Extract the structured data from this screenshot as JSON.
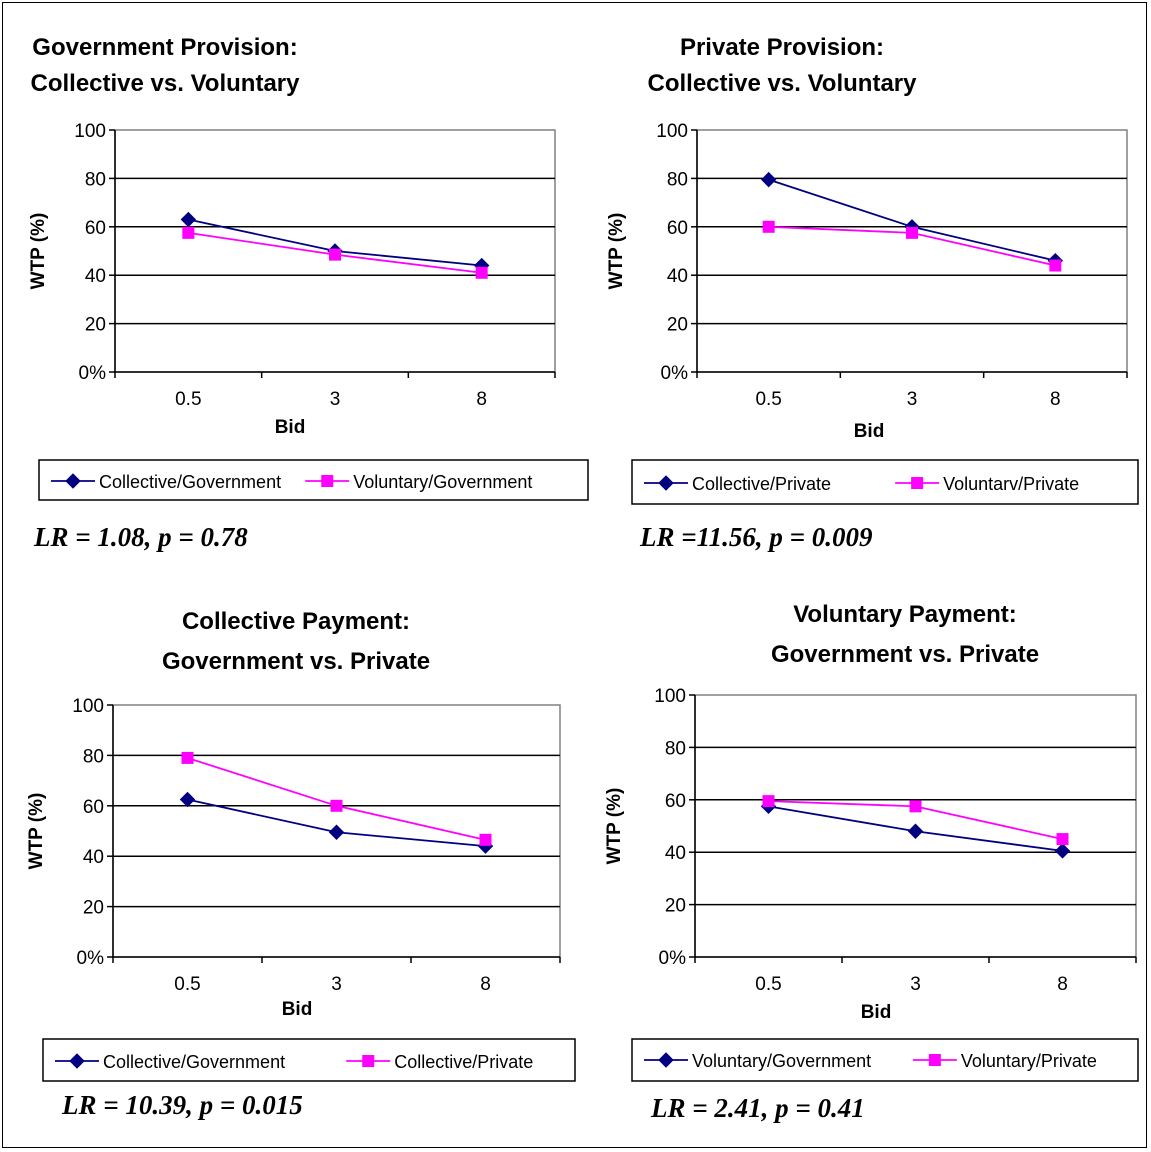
{
  "chart_data": [
    {
      "type": "line",
      "title": [
        "Government Provision:",
        "Collective vs. Voluntary"
      ],
      "xlabel": "Bid",
      "ylabel": "WTP (%)",
      "categories": [
        "0.5",
        "3",
        "8"
      ],
      "yticks": [
        "0%",
        "20",
        "40",
        "60",
        "80",
        "100"
      ],
      "ylim": [
        0,
        100
      ],
      "grid": true,
      "legend_position": "bottom",
      "series": [
        {
          "name": "Collective/Government",
          "values": [
            63,
            50,
            44
          ],
          "color": "#000080",
          "marker": "diamond"
        },
        {
          "name": "Voluntary/Government",
          "values": [
            57.5,
            48.5,
            41
          ],
          "color": "#ff00ff",
          "marker": "square"
        }
      ],
      "annotation": "LR = 1.08, p = 0.78"
    },
    {
      "type": "line",
      "title": [
        "Private Provision:",
        "Collective vs. Voluntary"
      ],
      "xlabel": "Bid",
      "ylabel": "WTP (%)",
      "categories": [
        "0.5",
        "3",
        "8"
      ],
      "yticks": [
        "0%",
        "20",
        "40",
        "60",
        "80",
        "100"
      ],
      "ylim": [
        0,
        100
      ],
      "grid": true,
      "legend_position": "bottom",
      "series": [
        {
          "name": "Collective/Private",
          "values": [
            79.5,
            60,
            46
          ],
          "color": "#000080",
          "marker": "diamond"
        },
        {
          "name": "Voluntarv/Private",
          "values": [
            60,
            57.5,
            44
          ],
          "color": "#ff00ff",
          "marker": "square"
        }
      ],
      "annotation": "LR =11.56, p = 0.009"
    },
    {
      "type": "line",
      "title": [
        "Collective Payment:",
        "Government vs. Private"
      ],
      "xlabel": "Bid",
      "ylabel": "WTP (%)",
      "categories": [
        "0.5",
        "3",
        "8"
      ],
      "yticks": [
        "0%",
        "20",
        "40",
        "60",
        "80",
        "100"
      ],
      "ylim": [
        0,
        100
      ],
      "grid": true,
      "legend_position": "bottom",
      "series": [
        {
          "name": "Collective/Government",
          "values": [
            62.5,
            49.5,
            44
          ],
          "color": "#000080",
          "marker": "diamond"
        },
        {
          "name": "Collective/Private",
          "values": [
            79,
            60,
            46.5
          ],
          "color": "#ff00ff",
          "marker": "square"
        }
      ],
      "annotation": "LR = 10.39, p = 0.015"
    },
    {
      "type": "line",
      "title": [
        "Voluntary Payment:",
        "Government vs. Private"
      ],
      "xlabel": "Bid",
      "ylabel": "WTP (%)",
      "categories": [
        "0.5",
        "3",
        "8"
      ],
      "yticks": [
        "0%",
        "20",
        "40",
        "60",
        "80",
        "100"
      ],
      "ylim": [
        0,
        100
      ],
      "grid": true,
      "legend_position": "bottom",
      "series": [
        {
          "name": "Voluntary/Government",
          "values": [
            57.5,
            48,
            40.5
          ],
          "color": "#000080",
          "marker": "diamond"
        },
        {
          "name": "Voluntary/Private",
          "values": [
            59.5,
            57.5,
            45
          ],
          "color": "#ff00ff",
          "marker": "square"
        }
      ],
      "annotation": "LR = 2.41, p = 0.41"
    }
  ]
}
